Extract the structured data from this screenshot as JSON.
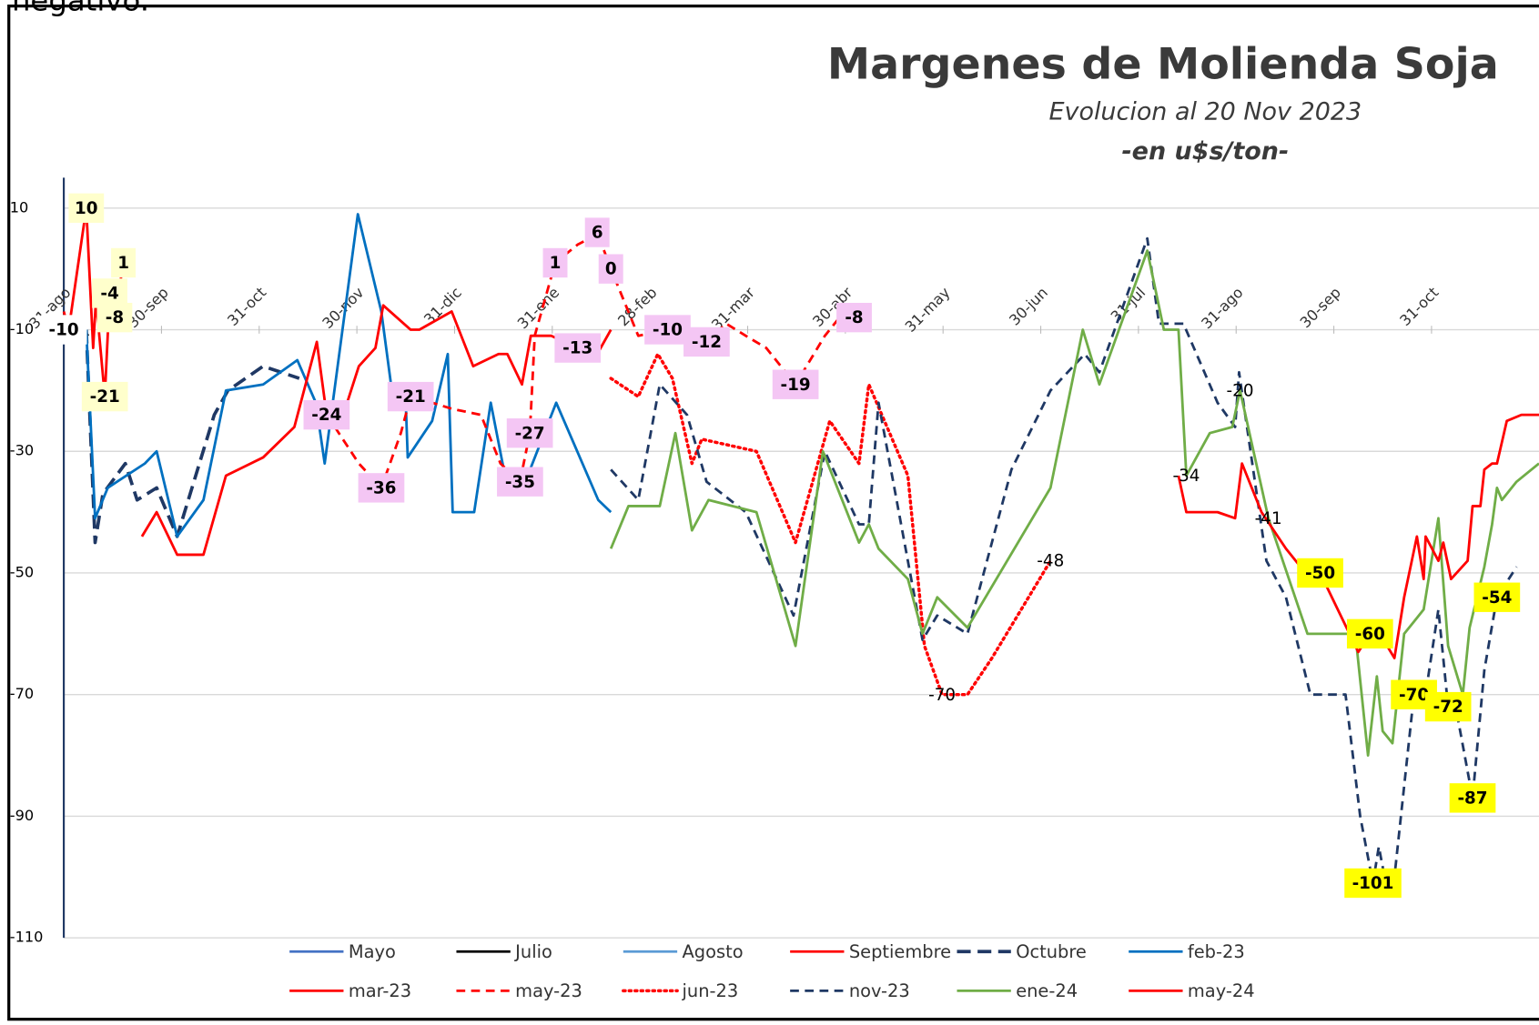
{
  "note": "negativo.",
  "chart_data": {
    "type": "line",
    "title": "Margenes de Molienda Soja",
    "subtitle": "Evolucion al 20 Nov 2023",
    "unit": "-en u$s/ton-",
    "xlim": [
      0,
      15.1
    ],
    "xticks": [
      {
        "value": 0,
        "label": "31-ago"
      },
      {
        "value": 1,
        "label": "30-sep"
      },
      {
        "value": 2,
        "label": "31-oct"
      },
      {
        "value": 3,
        "label": "30-nov"
      },
      {
        "value": 4,
        "label": "31-dic"
      },
      {
        "value": 5,
        "label": "31-ene"
      },
      {
        "value": 6,
        "label": "28-feb"
      },
      {
        "value": 7,
        "label": "31-mar"
      },
      {
        "value": 8,
        "label": "30-abr"
      },
      {
        "value": 9,
        "label": "31-may"
      },
      {
        "value": 10,
        "label": "30-jun"
      },
      {
        "value": 11,
        "label": "31-jul"
      },
      {
        "value": 12,
        "label": "31-ago"
      },
      {
        "value": 13,
        "label": "30-sep"
      },
      {
        "value": 14,
        "label": "31-oct"
      }
    ],
    "x_axis_at": -10,
    "ylim": [
      -110,
      15
    ],
    "yticks": [
      10,
      -10,
      -30,
      -50,
      -70,
      -90,
      -110
    ],
    "grid": true,
    "legend": "bottom",
    "series": [
      {
        "name": "Mayo",
        "color": "#4472c4",
        "dash": "solid",
        "x": [
          0,
          0.04,
          0.12
        ],
        "values": [
          -10,
          -12,
          -11
        ],
        "value_labels": [
          "-10",
          null,
          null
        ],
        "label_color": "#ffffff"
      },
      {
        "name": "Julio",
        "color": "#000000",
        "dash": "solid",
        "x": [
          0.2,
          0.25
        ],
        "values": [
          -10,
          -11
        ]
      },
      {
        "name": "Agosto",
        "color": "#5b9bd5",
        "dash": "solid",
        "x": [
          0.1,
          0.2
        ],
        "values": [
          -11,
          -10
        ]
      },
      {
        "name": "Septiembre",
        "color": "#ff0000",
        "dash": "solid",
        "x": [
          0,
          0.05,
          0.23,
          0.3,
          0.33,
          0.42,
          0.47,
          0.52,
          0.61
        ],
        "values": [
          -7,
          -10,
          10,
          -13,
          -5,
          -21,
          -4,
          -8,
          1
        ],
        "value_labels": [
          null,
          null,
          "10",
          null,
          null,
          "-21",
          "-4",
          "-8",
          "1"
        ],
        "label_color": "#ffffcc"
      },
      {
        "name": "Octubre",
        "color": "#1f3864",
        "dash": "longdash",
        "x": [
          0.23,
          0.32,
          0.4,
          0.63,
          0.75,
          0.95,
          1.16,
          1.54,
          1.68,
          2.04,
          2.41
        ],
        "values": [
          -10,
          -45,
          -37,
          -32,
          -38,
          -36,
          -44,
          -24,
          -20,
          -16,
          -18
        ]
      },
      {
        "name": "feb-23",
        "color": "#0070c0",
        "dash": "solid",
        "x": [
          0.23,
          0.32,
          0.45,
          0.83,
          0.95,
          1.16,
          1.43,
          1.66,
          2.04,
          2.39,
          2.58,
          2.67,
          3.01,
          3.25,
          3.35,
          3.5,
          3.52,
          3.77,
          3.93,
          3.98,
          4.2,
          4.37,
          4.54,
          4.7,
          5.04,
          5.47,
          5.6
        ],
        "values": [
          -10,
          -41,
          -36,
          -32,
          -30,
          -44,
          -38,
          -20,
          -19,
          -15,
          -22,
          -32,
          9,
          -7,
          -19,
          -22,
          -31,
          -25,
          -14,
          -40,
          -40,
          -22,
          -36,
          -36,
          -22,
          -38,
          -40
        ]
      },
      {
        "name": "mar-23",
        "color": "#ff0000",
        "dash": "solid",
        "x": [
          0.8,
          0.95,
          1.16,
          1.43,
          1.66,
          2.04,
          2.36,
          2.59,
          2.69,
          2.86,
          3.02,
          3.19,
          3.27,
          3.55,
          3.64,
          3.97,
          4.19,
          4.45,
          4.54,
          4.69,
          4.78,
          4.99,
          5.26,
          5.46,
          5.6
        ],
        "values": [
          -44,
          -40,
          -47,
          -47,
          -34,
          -31,
          -26,
          -12,
          -24,
          -24,
          -16,
          -13,
          -6,
          -10,
          -10,
          -7,
          -16,
          -14,
          -14,
          -19,
          -11,
          -11,
          -13,
          -14,
          -10
        ],
        "value_labels": [
          null,
          null,
          null,
          null,
          null,
          null,
          null,
          null,
          "-24",
          null,
          null,
          null,
          null,
          null,
          null,
          null,
          null,
          null,
          null,
          null,
          null,
          null,
          "-13",
          null,
          null
        ],
        "label_color": "#f4c6f4"
      },
      {
        "name": "may-23",
        "color": "#ff0000",
        "dash": "dash",
        "x": [
          2.61,
          3.02,
          3.25,
          3.45,
          3.55,
          3.77,
          3.97,
          4.27,
          4.47,
          4.67,
          4.77,
          4.82,
          5.03,
          5.26,
          5.38,
          5.46,
          5.6,
          5.88,
          6.18,
          6.38,
          6.58,
          6.78,
          6.98,
          7.19,
          7.49,
          7.79,
          7.94,
          8.09
        ],
        "values": [
          -22,
          -32,
          -36,
          -27,
          -21,
          -22,
          -23,
          -24,
          -32,
          -35,
          -27,
          -11,
          1,
          4,
          5,
          6,
          0,
          -11,
          -10,
          -11,
          -12,
          -9,
          -11,
          -13,
          -19,
          -11,
          -8,
          -8
        ],
        "value_labels": [
          null,
          null,
          "-36",
          null,
          "-21",
          null,
          null,
          null,
          null,
          "-35",
          "-27",
          null,
          "1",
          null,
          null,
          "6",
          "0",
          null,
          "-10",
          null,
          "-12",
          null,
          null,
          null,
          "-19",
          null,
          null,
          "-8"
        ],
        "label_color": "#f4c6f4"
      },
      {
        "name": "jun-23",
        "color": "#ff0000",
        "dash": "dot",
        "x": [
          5.6,
          5.88,
          6.08,
          6.23,
          6.43,
          6.53,
          7.09,
          7.49,
          7.84,
          8.14,
          8.24,
          8.64,
          8.81,
          8.99,
          9.25,
          9.5,
          9.8,
          10.1
        ],
        "values": [
          -18,
          -21,
          -14,
          -18,
          -32,
          -28,
          -30,
          -45,
          -25,
          -32,
          -19,
          -34,
          -62,
          -70,
          -70,
          -64,
          -56,
          -48
        ],
        "value_labels": [
          null,
          null,
          null,
          null,
          null,
          null,
          null,
          null,
          null,
          null,
          null,
          null,
          null,
          "-70",
          null,
          null,
          null,
          "-48"
        ]
      },
      {
        "name": "nov-23",
        "color": "#1f3864",
        "dash": "dash",
        "x": [
          5.6,
          5.88,
          6.1,
          6.38,
          6.58,
          6.98,
          7.47,
          7.79,
          8.14,
          8.24,
          8.34,
          8.79,
          8.94,
          9.25,
          9.7,
          10.1,
          10.45,
          10.6,
          11.09,
          11.21,
          11.46,
          11.81,
          11.99,
          12.03,
          12.31,
          12.51,
          12.76,
          13.12,
          13.27,
          13.4,
          13.46,
          13.52,
          13.62,
          13.82,
          13.92,
          14.07,
          14.17,
          14.27,
          14.42,
          14.54,
          14.67,
          14.87
        ],
        "values": [
          -33,
          -38,
          -19,
          -24,
          -35,
          -40,
          -57,
          -30,
          -42,
          -42,
          -22,
          -61,
          -57,
          -60,
          -33,
          -20,
          -14,
          -17,
          5,
          -9,
          -9,
          -22,
          -26,
          -17,
          -48,
          -54,
          -70,
          -70,
          -90,
          -101,
          -95,
          -100,
          -100,
          -70,
          -72,
          -56,
          -72,
          -74,
          -87,
          -66,
          -54,
          -49
        ],
        "value_labels": [
          null,
          null,
          null,
          null,
          null,
          null,
          null,
          null,
          null,
          null,
          null,
          null,
          null,
          null,
          null,
          null,
          null,
          null,
          null,
          null,
          null,
          null,
          null,
          null,
          null,
          null,
          null,
          null,
          null,
          "-101",
          null,
          null,
          null,
          "-70",
          null,
          null,
          "-72",
          null,
          "-87",
          null,
          "-54",
          null
        ],
        "label_color": "#ffff00"
      },
      {
        "name": "ene-24",
        "color": "#70ad47",
        "dash": "solid",
        "x": [
          5.6,
          5.78,
          6.1,
          6.26,
          6.43,
          6.6,
          7.09,
          7.49,
          7.77,
          8.14,
          8.24,
          8.34,
          8.64,
          8.79,
          8.94,
          9.25,
          10.1,
          10.43,
          10.6,
          11.09,
          11.26,
          11.41,
          11.49,
          11.73,
          11.96,
          12.04,
          12.33,
          12.73,
          13.22,
          13.35,
          13.44,
          13.5,
          13.6,
          13.72,
          13.82,
          13.92,
          14.07,
          14.17,
          14.32,
          14.39,
          14.54,
          14.62,
          14.67,
          14.72,
          14.87,
          15.1
        ],
        "values": [
          -46,
          -39,
          -39,
          -27,
          -43,
          -38,
          -40,
          -62,
          -30,
          -45,
          -42,
          -46,
          -51,
          -60,
          -54,
          -59,
          -36,
          -10,
          -19,
          3,
          -10,
          -10,
          -34,
          -27,
          -26,
          -20,
          -41,
          -60,
          -60,
          -80,
          -67,
          -76,
          -78,
          -60,
          -58,
          -56,
          -41,
          -62,
          -70,
          -59,
          -49,
          -42,
          -36,
          -38,
          -35,
          -32
        ],
        "value_labels": [
          null,
          null,
          null,
          null,
          null,
          null,
          null,
          null,
          null,
          null,
          null,
          null,
          null,
          null,
          null,
          null,
          null,
          null,
          null,
          null,
          null,
          null,
          "-34",
          null,
          null,
          "-20",
          "-41",
          null,
          null,
          null,
          null,
          null,
          null,
          null,
          null,
          null,
          null,
          null,
          null,
          null,
          null,
          null,
          null,
          null,
          null,
          null
        ]
      },
      {
        "name": "may-24",
        "color": "#ff0000",
        "dash": "solid",
        "x": [
          11.41,
          11.49,
          11.81,
          11.99,
          12.06,
          12.26,
          12.51,
          12.71,
          12.86,
          13.25,
          13.37,
          13.47,
          13.62,
          13.72,
          13.85,
          13.92,
          13.94,
          14.07,
          14.12,
          14.2,
          14.37,
          14.42,
          14.5,
          14.54,
          14.62,
          14.67,
          14.77,
          14.92,
          15.1
        ],
        "values": [
          -34,
          -40,
          -40,
          -41,
          -32,
          -40,
          -46,
          -50,
          -50,
          -63,
          -60,
          -60,
          -64,
          -54,
          -44,
          -51,
          -44,
          -48,
          -45,
          -51,
          -48,
          -39,
          -39,
          -33,
          -32,
          -32,
          -25,
          -24,
          -24
        ],
        "value_labels": [
          null,
          null,
          null,
          null,
          null,
          null,
          null,
          null,
          "-50",
          null,
          "-60",
          null,
          null,
          null,
          null,
          null,
          null,
          null,
          null,
          null,
          null,
          null,
          null,
          null,
          null,
          null,
          null,
          null,
          null
        ],
        "label_color": "#ffff00"
      }
    ]
  }
}
